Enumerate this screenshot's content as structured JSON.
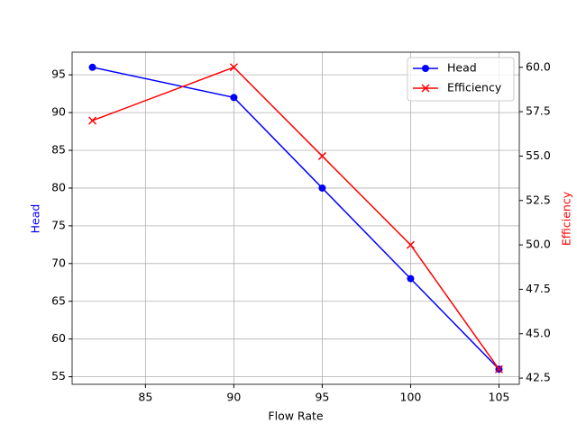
{
  "chart_data": {
    "type": "line",
    "xlabel": "Flow Rate",
    "ylabel": "Head",
    "y2label": "Efficiency",
    "ylabel_color": "blue",
    "y2label_color": "red",
    "x": [
      82,
      90,
      95,
      100,
      105
    ],
    "series": [
      {
        "name": "Head",
        "color": "blue",
        "marker": "o",
        "values": [
          96,
          92,
          80,
          68,
          56
        ]
      },
      {
        "name": "Efficiency",
        "color": "red",
        "marker": "x",
        "axis": "y2",
        "values": [
          57,
          60,
          55,
          50,
          43
        ]
      }
    ],
    "xlim": [
      80.85,
      106.15
    ],
    "xticks": [
      85,
      90,
      95,
      100,
      105
    ],
    "ylim": [
      54,
      98
    ],
    "yticks": [
      55,
      60,
      65,
      70,
      75,
      80,
      85,
      90,
      95
    ],
    "y2lim": [
      42.15,
      60.85
    ],
    "y2ticks": [
      42.5,
      {
        "value": 45,
        "label": "45.0"
      },
      47.5,
      {
        "value": 50,
        "label": "50.0"
      },
      52.5,
      {
        "value": 55,
        "label": "55.0"
      },
      57.5,
      {
        "value": 60,
        "label": "60.0"
      }
    ],
    "grid": true,
    "legend": "upper right"
  }
}
